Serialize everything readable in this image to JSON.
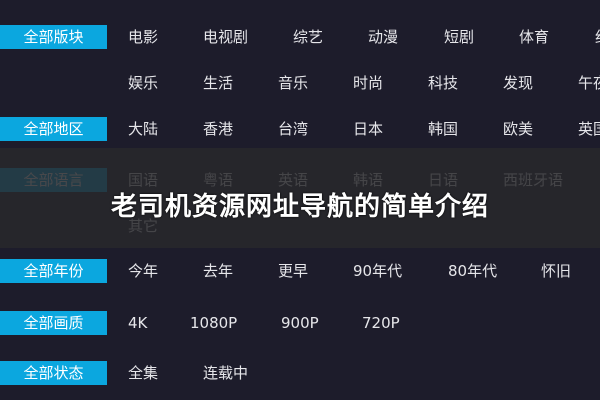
{
  "rows": [
    {
      "label": "全部版块",
      "items": [
        "电影",
        "电视剧",
        "综艺",
        "动漫",
        "短剧",
        "体育",
        "纪"
      ]
    },
    {
      "label": "",
      "items": [
        "娱乐",
        "生活",
        "音乐",
        "时尚",
        "科技",
        "发现",
        "午夜"
      ]
    },
    {
      "label": "全部地区",
      "items": [
        "大陆",
        "香港",
        "台湾",
        "日本",
        "韩国",
        "欧美",
        "英国"
      ]
    },
    {
      "label": "全部语言",
      "items": [
        "国语",
        "粤语",
        "英语",
        "韩语",
        "日语",
        "西班牙语"
      ]
    },
    {
      "label": "",
      "items": [
        "其它"
      ]
    },
    {
      "label": "全部年份",
      "items": [
        "今年",
        "去年",
        "更早",
        "90年代",
        "80年代",
        "怀旧"
      ]
    },
    {
      "label": "全部画质",
      "items": [
        "4K",
        "1080P",
        "900P",
        "720P"
      ]
    },
    {
      "label": "全部状态",
      "items": [
        "全集",
        "连载中"
      ]
    }
  ],
  "overlay_title": "老司机资源网址导航的简单介绍",
  "colors": {
    "background": "#1d1c2b",
    "label_bg": "#0ba7df",
    "overlay": "#28282c"
  }
}
